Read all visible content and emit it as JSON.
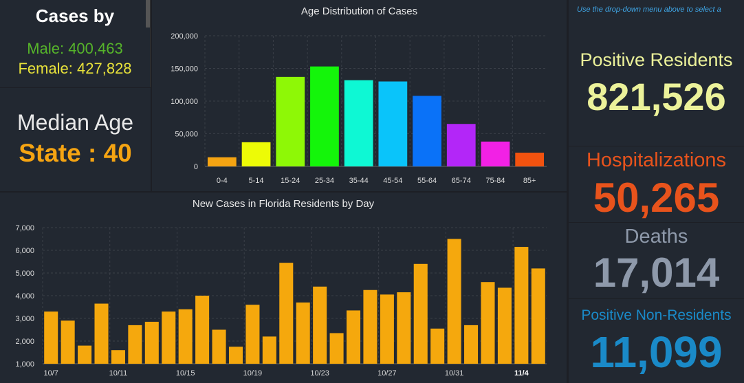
{
  "left": {
    "title": "Cases by",
    "male": "Male: 400,463",
    "female": "Female: 427,828",
    "median_label": "Median Age",
    "median_value": "State : 40"
  },
  "right": {
    "hint": "Use the drop-down menu above to select a",
    "positive_residents_label": "Positive Residents",
    "positive_residents_value": "821,526",
    "hosp_label": "Hospitalizations",
    "hosp_value": "50,265",
    "deaths_label": "Deaths",
    "deaths_value": "17,014",
    "nonres_label": "Positive Non-Residents",
    "nonres_value": "11,099"
  },
  "colors": {
    "male": "#56b52a",
    "female": "#e8e23a",
    "median": "#f5a412",
    "positive": "#ecf29a",
    "hosp": "#e8531c",
    "deaths": "#8e99aa",
    "nonres": "#1a8ac8",
    "bars": "#f5a80d"
  },
  "chart_data": [
    {
      "type": "bar",
      "title": "Age Distribution of Cases",
      "categories": [
        "0-4",
        "5-14",
        "15-24",
        "25-34",
        "35-44",
        "45-54",
        "55-64",
        "65-74",
        "75-84",
        "85+"
      ],
      "values": [
        14000,
        37000,
        137000,
        153000,
        132000,
        130000,
        108000,
        65000,
        38000,
        21000
      ],
      "colors": [
        "#f5a412",
        "#edfb06",
        "#8ef806",
        "#14f50a",
        "#0ef8d4",
        "#0ac4fa",
        "#0a72f8",
        "#b326f8",
        "#f221e5",
        "#f2520f"
      ],
      "yticks": [
        0,
        50000,
        100000,
        150000,
        200000
      ],
      "ytick_labels": [
        "0",
        "50,000",
        "100,000",
        "150,000",
        "200,000"
      ],
      "ylim": [
        0,
        200000
      ]
    },
    {
      "type": "bar",
      "title": "New Cases in Florida Residents by Day",
      "x_labels": [
        "10/7",
        "10/11",
        "10/15",
        "10/19",
        "10/23",
        "10/27",
        "10/31",
        "11/4"
      ],
      "x_label_index": [
        0,
        4,
        8,
        12,
        16,
        20,
        24,
        28
      ],
      "values": [
        3300,
        2900,
        1800,
        3650,
        1600,
        2700,
        2850,
        3300,
        3400,
        4000,
        2500,
        1750,
        3600,
        2200,
        5450,
        3700,
        4400,
        2350,
        3350,
        4250,
        4050,
        4150,
        5400,
        2550,
        6500,
        2700,
        4600,
        4350,
        6150,
        5200
      ],
      "yticks": [
        1000,
        2000,
        3000,
        4000,
        5000,
        6000,
        7000
      ],
      "ytick_labels": [
        "1,000",
        "2,000",
        "3,000",
        "4,000",
        "5,000",
        "6,000",
        "7,000"
      ],
      "ylim": [
        1000,
        7000
      ]
    }
  ]
}
